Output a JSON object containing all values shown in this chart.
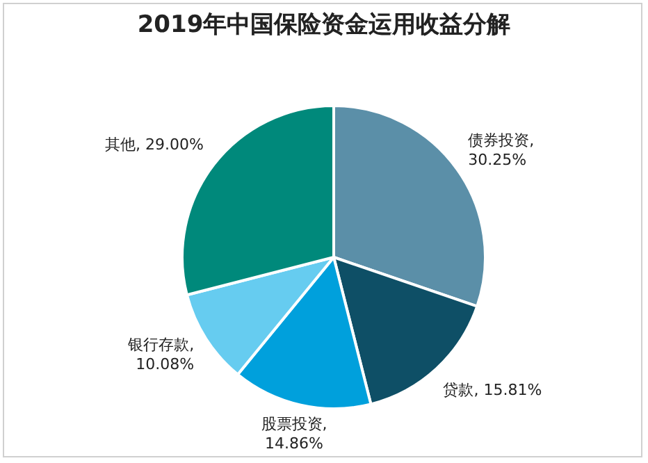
{
  "chart_data": {
    "type": "pie",
    "title": "2019年中国保险资金运用收益分解",
    "categories": [
      "债券投资",
      "贷款",
      "股票投资",
      "银行存款",
      "其他"
    ],
    "values": [
      30.25,
      15.81,
      14.86,
      10.08,
      29.0
    ],
    "colors": [
      "#5b8fa8",
      "#0e4f66",
      "#00a0dc",
      "#66ccf0",
      "#00897b"
    ],
    "value_labels": [
      ", 30.25%",
      ", 15.81%",
      ", 14.86%",
      ", 10.08%",
      ", 29.00%"
    ],
    "legend": false
  }
}
